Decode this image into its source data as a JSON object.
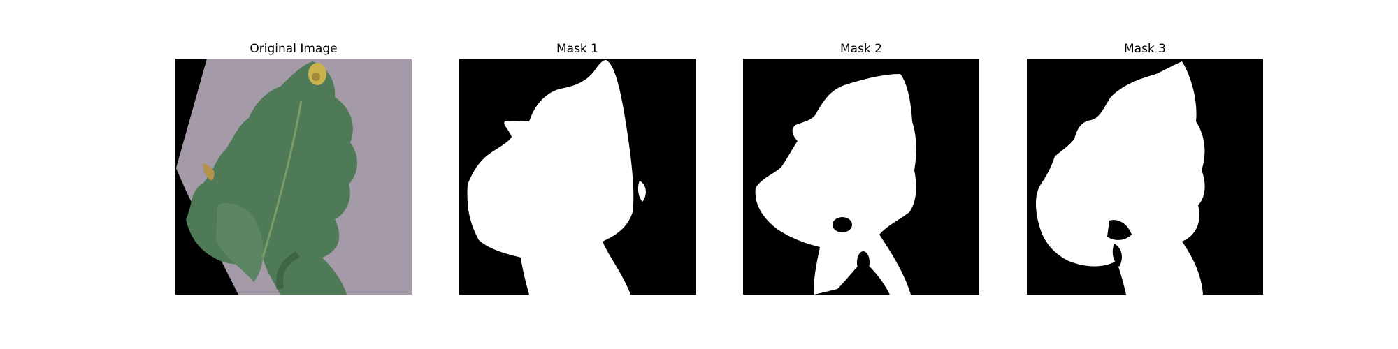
{
  "figure": {
    "panels": [
      {
        "title": "Original Image",
        "content": "tomato leaf photo"
      },
      {
        "title": "Mask 1",
        "content": "binary mask"
      },
      {
        "title": "Mask 2",
        "content": "binary mask"
      },
      {
        "title": "Mask 3",
        "content": "binary mask"
      }
    ]
  },
  "colors": {
    "background": "#000000",
    "mask_foreground": "#ffffff",
    "leaf": "#4f7a58",
    "paper": "#a49aa8",
    "lesion": "#c9b34a"
  }
}
